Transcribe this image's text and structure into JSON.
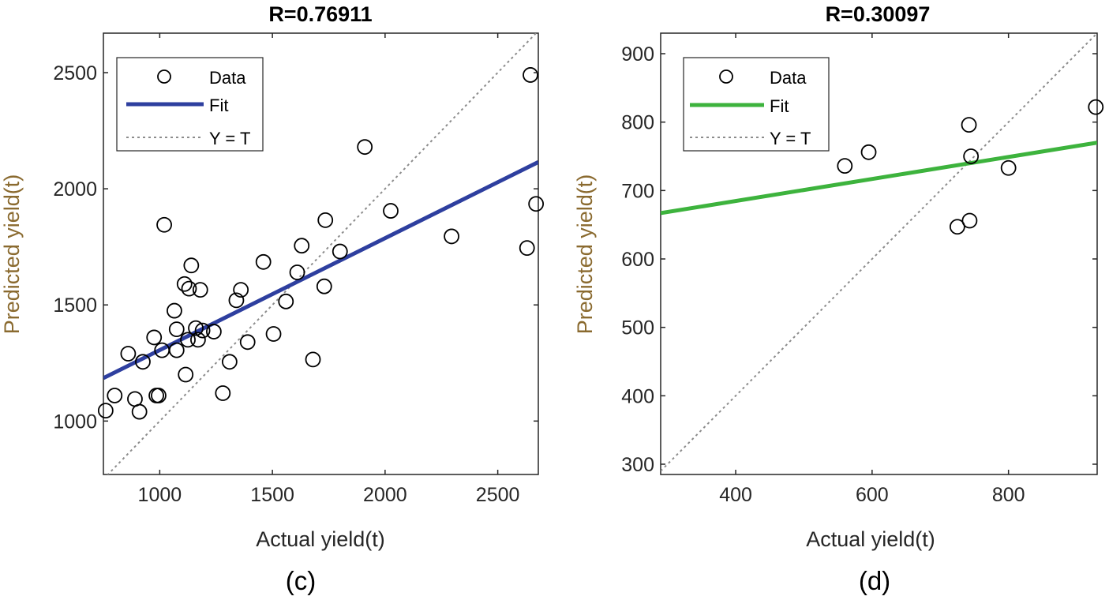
{
  "chart_data": [
    {
      "type": "scatter",
      "panel_label": "(c)",
      "title": "R=0.76911",
      "xlabel": "Actual yield(t)",
      "ylabel": "Predicted yield(t)",
      "xlim": [
        750,
        2680
      ],
      "ylim": [
        770,
        2670
      ],
      "xticks": [
        1000,
        1500,
        2000,
        2500
      ],
      "yticks": [
        1000,
        1500,
        2000,
        2500
      ],
      "fit_color": "#2e3f9f",
      "legend": {
        "position": "top-left",
        "data": "Data",
        "fit": "Fit",
        "yt": "Y = T"
      },
      "fit_line": {
        "x": [
          750,
          2680
        ],
        "y": [
          1185,
          2115
        ]
      },
      "identity_line": {
        "x": [
          750,
          2680
        ],
        "y": [
          750,
          2680
        ]
      },
      "points": [
        {
          "x": 760,
          "y": 1045
        },
        {
          "x": 800,
          "y": 1110
        },
        {
          "x": 860,
          "y": 1290
        },
        {
          "x": 890,
          "y": 1095
        },
        {
          "x": 910,
          "y": 1040
        },
        {
          "x": 925,
          "y": 1255
        },
        {
          "x": 975,
          "y": 1360
        },
        {
          "x": 985,
          "y": 1110
        },
        {
          "x": 995,
          "y": 1110
        },
        {
          "x": 1010,
          "y": 1305
        },
        {
          "x": 1020,
          "y": 1845
        },
        {
          "x": 1065,
          "y": 1475
        },
        {
          "x": 1075,
          "y": 1395
        },
        {
          "x": 1075,
          "y": 1305
        },
        {
          "x": 1110,
          "y": 1590
        },
        {
          "x": 1115,
          "y": 1200
        },
        {
          "x": 1125,
          "y": 1350
        },
        {
          "x": 1130,
          "y": 1570
        },
        {
          "x": 1140,
          "y": 1670
        },
        {
          "x": 1160,
          "y": 1400
        },
        {
          "x": 1170,
          "y": 1350
        },
        {
          "x": 1180,
          "y": 1565
        },
        {
          "x": 1190,
          "y": 1390
        },
        {
          "x": 1240,
          "y": 1385
        },
        {
          "x": 1280,
          "y": 1120
        },
        {
          "x": 1310,
          "y": 1255
        },
        {
          "x": 1340,
          "y": 1520
        },
        {
          "x": 1360,
          "y": 1565
        },
        {
          "x": 1390,
          "y": 1340
        },
        {
          "x": 1460,
          "y": 1685
        },
        {
          "x": 1505,
          "y": 1375
        },
        {
          "x": 1560,
          "y": 1515
        },
        {
          "x": 1610,
          "y": 1640
        },
        {
          "x": 1630,
          "y": 1755
        },
        {
          "x": 1680,
          "y": 1265
        },
        {
          "x": 1730,
          "y": 1580
        },
        {
          "x": 1735,
          "y": 1865
        },
        {
          "x": 1800,
          "y": 1730
        },
        {
          "x": 1910,
          "y": 2180
        },
        {
          "x": 2025,
          "y": 1905
        },
        {
          "x": 2295,
          "y": 1795
        },
        {
          "x": 2630,
          "y": 1745
        },
        {
          "x": 2645,
          "y": 2490
        },
        {
          "x": 2670,
          "y": 1935
        }
      ]
    },
    {
      "type": "scatter",
      "panel_label": "(d)",
      "title": "R=0.30097",
      "xlabel": "Actual yield(t)",
      "ylabel": "Predicted yield(t)",
      "xlim": [
        290,
        930
      ],
      "ylim": [
        285,
        930
      ],
      "xticks": [
        400,
        600,
        800
      ],
      "yticks": [
        300,
        400,
        500,
        600,
        700,
        800,
        900
      ],
      "fit_color": "#3db33d",
      "legend": {
        "position": "top-left",
        "data": "Data",
        "fit": "Fit",
        "yt": "Y = T"
      },
      "fit_line": {
        "x": [
          290,
          930
        ],
        "y": [
          667,
          770
        ]
      },
      "identity_line": {
        "x": [
          290,
          930
        ],
        "y": [
          290,
          930
        ]
      },
      "points": [
        {
          "x": 560,
          "y": 736
        },
        {
          "x": 595,
          "y": 756
        },
        {
          "x": 725,
          "y": 647
        },
        {
          "x": 742,
          "y": 796
        },
        {
          "x": 745,
          "y": 750
        },
        {
          "x": 743,
          "y": 656
        },
        {
          "x": 800,
          "y": 733
        },
        {
          "x": 928,
          "y": 822
        }
      ]
    }
  ]
}
